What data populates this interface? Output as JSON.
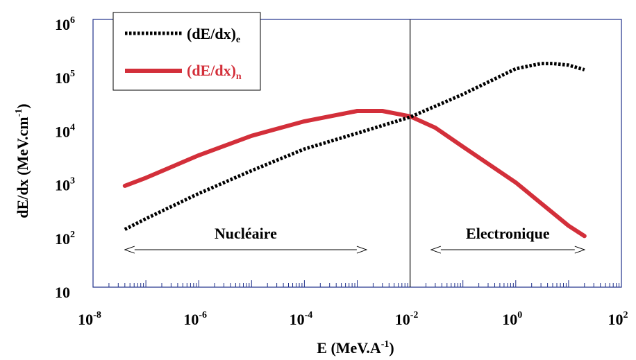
{
  "chart_data": {
    "type": "line",
    "xscale": "log",
    "yscale": "log",
    "xlim": [
      1e-08,
      100
    ],
    "ylim": [
      10,
      1000000
    ],
    "xlabel": "E (MeV.A",
    "xlabel_sup": "-1",
    "xlabel_suffix": ")",
    "ylabel": "dE/dx (MeV.cm",
    "ylabel_sup": "-1",
    "ylabel_suffix": ")",
    "x_ticks": [
      {
        "base": "10",
        "exp": "-8"
      },
      {
        "base": "10",
        "exp": "-6"
      },
      {
        "base": "10",
        "exp": "-4"
      },
      {
        "base": "10",
        "exp": "-2"
      },
      {
        "base": "10",
        "exp": "0"
      },
      {
        "base": "10",
        "exp": "2"
      }
    ],
    "y_ticks": [
      {
        "base": "10",
        "exp": ""
      },
      {
        "base": "10",
        "exp": "2"
      },
      {
        "base": "10",
        "exp": "3"
      },
      {
        "base": "10",
        "exp": "4"
      },
      {
        "base": "10",
        "exp": "5"
      },
      {
        "base": "10",
        "exp": "6"
      }
    ],
    "legend": {
      "placement": "top-left",
      "entries": [
        {
          "label": "(dE/dx)",
          "sub": "e",
          "color": "#000000",
          "style": "dotted"
        },
        {
          "label": "(dE/dx)",
          "sub": "n",
          "color": "#d32f3a",
          "style": "solid"
        }
      ]
    },
    "series": [
      {
        "sub": "e",
        "color": "#000000",
        "style": "dotted",
        "x": [
          4e-08,
          1e-07,
          1e-06,
          1e-05,
          0.0001,
          0.001,
          0.01,
          0.1,
          1,
          3,
          5,
          10,
          20
        ],
        "y": [
          120,
          190,
          560,
          1500,
          3800,
          7500,
          15000,
          40000,
          120000,
          150000,
          150000,
          140000,
          115000
        ]
      },
      {
        "sub": "n",
        "color": "#d32f3a",
        "style": "solid",
        "x": [
          4e-08,
          1e-07,
          1e-06,
          1e-05,
          0.0001,
          0.001,
          0.003,
          0.01,
          0.03,
          0.1,
          1,
          10,
          20
        ],
        "y": [
          780,
          1100,
          2900,
          6700,
          12500,
          19500,
          19500,
          15500,
          9500,
          4200,
          900,
          140,
          90
        ]
      }
    ],
    "vertical_line_x": 0.01,
    "annotations": [
      {
        "text": "Nucléaire",
        "x_from": 4e-08,
        "x_to": 0.0015,
        "y": 50
      },
      {
        "text": "Electronique",
        "x_from": 0.025,
        "x_to": 20,
        "y": 50
      }
    ]
  }
}
